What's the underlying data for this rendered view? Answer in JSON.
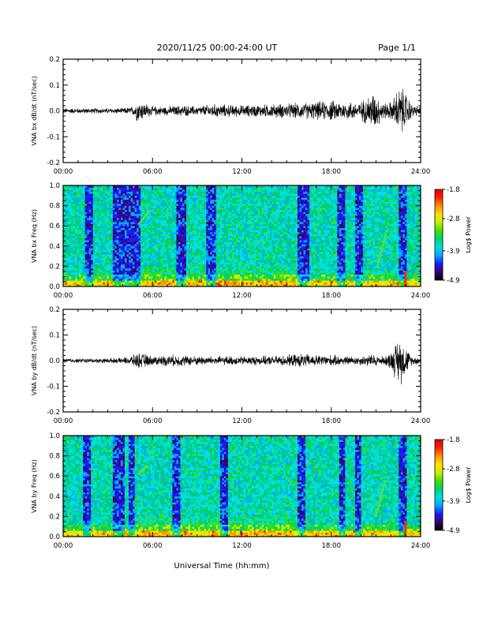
{
  "header": {
    "title": "2020/11/25  00:00-24:00 UT",
    "page": "Page 1/1"
  },
  "footer": {
    "xlabel": "Universal Time (hh:mm)"
  },
  "colorscale": {
    "label": "Log$ Power",
    "ticks": [
      "-1.8",
      "-2.8",
      "-3.9",
      "-4.9"
    ],
    "colors": [
      "#000000",
      "#3a0070",
      "#1a1aff",
      "#00a8ff",
      "#00e0e0",
      "#00d070",
      "#40e000",
      "#c8f000",
      "#ffe000",
      "#ff9000",
      "#ff2000",
      "#e00000"
    ]
  },
  "chart_data": [
    {
      "type": "line",
      "title": "",
      "ylabel": "VNA bx dB/dt (nT/sec)",
      "xlabel": "",
      "xticks": [
        "00:00",
        "06:00",
        "12:00",
        "18:00",
        "24:00"
      ],
      "yticks": [
        "0.2",
        "0.1",
        "0.0",
        "-0.1",
        "-0.2"
      ],
      "xlim": [
        0,
        24
      ],
      "ylim": [
        -0.2,
        0.2
      ],
      "series": [
        {
          "x": [
            0,
            2,
            4,
            4.7,
            5,
            5.5,
            6,
            7,
            8,
            9,
            10,
            12,
            14,
            16,
            17,
            18,
            19,
            20,
            20.8,
            21.2,
            21.6,
            22,
            22.6,
            23,
            23.4,
            24
          ],
          "y": [
            0.012,
            0.012,
            0.012,
            0.02,
            0.05,
            0.035,
            0.02,
            0.02,
            0.025,
            0.02,
            0.03,
            0.025,
            0.03,
            0.035,
            0.04,
            0.045,
            0.04,
            0.04,
            0.085,
            0.06,
            0.035,
            0.04,
            0.11,
            0.085,
            0.03,
            0.02
          ]
        }
      ]
    },
    {
      "type": "heatmap",
      "title": "",
      "ylabel": "VNA bx Freq (Hz)",
      "xticks": [
        "00:00",
        "06:00",
        "12:00",
        "18:00",
        "24:00"
      ],
      "yticks": [
        "1.0",
        "0.8",
        "0.6",
        "0.4",
        "0.2",
        "0.0"
      ],
      "xlim": [
        0,
        24
      ],
      "ylim": [
        0,
        1.0
      ],
      "z_range": [
        -4.9,
        -1.8
      ],
      "quiet_bands": [
        [
          1.5,
          2.0
        ],
        [
          3.3,
          5.2
        ],
        [
          7.6,
          8.3
        ],
        [
          9.6,
          10.3
        ],
        [
          15.8,
          16.5
        ],
        [
          18.4,
          18.9
        ],
        [
          19.6,
          20.1
        ],
        [
          22.6,
          23.0
        ]
      ],
      "emission_lines": [
        [
          5.1,
          0.62,
          5.8,
          0.75
        ],
        [
          21.1,
          0.2,
          21.7,
          0.55
        ]
      ]
    },
    {
      "type": "line",
      "title": "",
      "ylabel": "VNA by dB/dt (nT/sec)",
      "xticks": [
        "00:00",
        "06:00",
        "12:00",
        "18:00",
        "24:00"
      ],
      "yticks": [
        "0.2",
        "0.1",
        "0.0",
        "-0.1",
        "-0.2"
      ],
      "xlim": [
        0,
        24
      ],
      "ylim": [
        -0.2,
        0.2
      ],
      "series": [
        {
          "x": [
            0,
            2,
            4,
            4.7,
            5,
            5.5,
            6,
            7,
            8,
            9,
            10,
            12,
            14,
            16,
            17,
            18,
            19,
            20,
            20.8,
            21.2,
            21.6,
            22,
            22.6,
            23,
            23.4,
            24
          ],
          "y": [
            0.01,
            0.01,
            0.012,
            0.025,
            0.035,
            0.03,
            0.02,
            0.025,
            0.025,
            0.02,
            0.02,
            0.02,
            0.02,
            0.03,
            0.025,
            0.025,
            0.02,
            0.02,
            0.03,
            0.02,
            0.02,
            0.04,
            0.11,
            0.06,
            0.02,
            0.015
          ]
        }
      ]
    },
    {
      "type": "heatmap",
      "title": "",
      "ylabel": "VNA by Freq (Hz)",
      "xticks": [
        "00:00",
        "06:00",
        "12:00",
        "18:00",
        "24:00"
      ],
      "yticks": [
        "1.0",
        "0.8",
        "0.6",
        "0.4",
        "0.2",
        "0.0"
      ],
      "xlim": [
        0,
        24
      ],
      "ylim": [
        0,
        1.0
      ],
      "z_range": [
        -4.9,
        -1.8
      ],
      "quiet_bands": [
        [
          1.4,
          1.8
        ],
        [
          3.4,
          4.1
        ],
        [
          4.4,
          4.8
        ],
        [
          7.4,
          7.9
        ],
        [
          10.6,
          11.1
        ],
        [
          15.8,
          16.3
        ],
        [
          18.5,
          18.9
        ],
        [
          19.6,
          20.0
        ],
        [
          22.6,
          23.0
        ]
      ],
      "emission_lines": [
        [
          5.1,
          0.62,
          5.6,
          0.7
        ],
        [
          21.0,
          0.2,
          21.6,
          0.55
        ]
      ]
    }
  ]
}
